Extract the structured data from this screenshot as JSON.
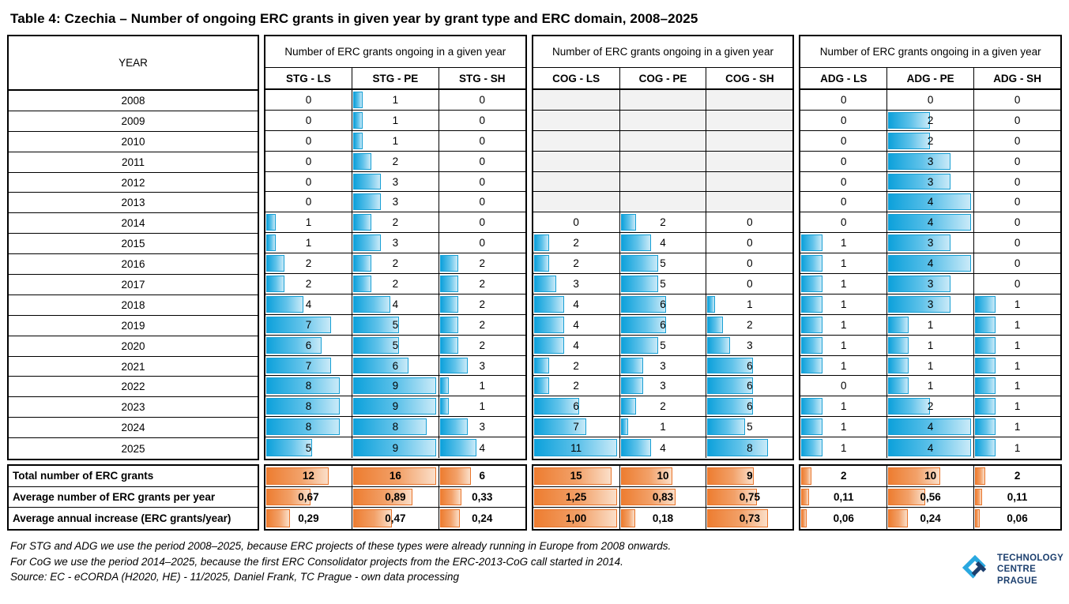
{
  "title": "Table 4: Czechia – Number of ongoing ERC grants in given year by grant type and ERC domain, 2008–2025",
  "chart_data": {
    "type": "table",
    "title": "Table 4: Czechia – Number of ongoing ERC grants in given year by grant type and ERC domain, 2008–2025",
    "year_column_header": "YEAR",
    "group_header": "Number of ERC grants ongoing in a given year",
    "years": [
      2008,
      2009,
      2010,
      2011,
      2012,
      2013,
      2014,
      2015,
      2016,
      2017,
      2018,
      2019,
      2020,
      2021,
      2022,
      2023,
      2024,
      2025
    ],
    "column_groups": [
      {
        "id": "STG",
        "columns": [
          "STG - LS",
          "STG - PE",
          "STG - SH"
        ],
        "bar_scale_max": 9,
        "rows": [
          [
            0,
            1,
            0
          ],
          [
            0,
            1,
            0
          ],
          [
            0,
            1,
            0
          ],
          [
            0,
            2,
            0
          ],
          [
            0,
            3,
            0
          ],
          [
            0,
            3,
            0
          ],
          [
            1,
            2,
            0
          ],
          [
            1,
            3,
            0
          ],
          [
            2,
            2,
            2
          ],
          [
            2,
            2,
            2
          ],
          [
            4,
            4,
            2
          ],
          [
            7,
            5,
            2
          ],
          [
            6,
            5,
            2
          ],
          [
            7,
            6,
            3
          ],
          [
            8,
            9,
            1
          ],
          [
            8,
            9,
            1
          ],
          [
            8,
            8,
            3
          ],
          [
            5,
            9,
            4
          ]
        ]
      },
      {
        "id": "COG",
        "columns": [
          "COG - LS",
          "COG - PE",
          "COG - SH"
        ],
        "bar_scale_max": 11,
        "rows": [
          null,
          null,
          null,
          null,
          null,
          null,
          [
            0,
            2,
            0
          ],
          [
            2,
            4,
            0
          ],
          [
            2,
            5,
            0
          ],
          [
            3,
            5,
            0
          ],
          [
            4,
            6,
            1
          ],
          [
            4,
            6,
            2
          ],
          [
            4,
            5,
            3
          ],
          [
            2,
            3,
            6
          ],
          [
            2,
            3,
            6
          ],
          [
            6,
            2,
            6
          ],
          [
            7,
            1,
            5
          ],
          [
            11,
            4,
            8
          ]
        ]
      },
      {
        "id": "ADG",
        "columns": [
          "ADG - LS",
          "ADG - PE",
          "ADG - SH"
        ],
        "bar_scale_max": 4,
        "rows": [
          [
            0,
            0,
            0
          ],
          [
            0,
            2,
            0
          ],
          [
            0,
            2,
            0
          ],
          [
            0,
            3,
            0
          ],
          [
            0,
            3,
            0
          ],
          [
            0,
            4,
            0
          ],
          [
            0,
            4,
            0
          ],
          [
            1,
            3,
            0
          ],
          [
            1,
            4,
            0
          ],
          [
            1,
            3,
            0
          ],
          [
            1,
            3,
            1
          ],
          [
            1,
            1,
            1
          ],
          [
            1,
            1,
            1
          ],
          [
            1,
            1,
            1
          ],
          [
            0,
            1,
            1
          ],
          [
            1,
            2,
            1
          ],
          [
            1,
            4,
            1
          ],
          [
            1,
            4,
            1
          ]
        ]
      }
    ],
    "summary_rows": [
      {
        "label": "Total number of ERC grants",
        "bar_scale_max": 16,
        "values": [
          [
            12,
            16,
            6
          ],
          [
            15,
            10,
            9
          ],
          [
            2,
            10,
            2
          ]
        ],
        "display": [
          [
            "12",
            "16",
            "6"
          ],
          [
            "15",
            "10",
            "9"
          ],
          [
            "2",
            "10",
            "2"
          ]
        ]
      },
      {
        "label": "Average number of ERC grants per year",
        "bar_scale_max": 1.25,
        "values": [
          [
            0.67,
            0.89,
            0.33
          ],
          [
            1.25,
            0.83,
            0.75
          ],
          [
            0.11,
            0.56,
            0.11
          ]
        ],
        "display": [
          [
            "0,67",
            "0,89",
            "0,33"
          ],
          [
            "1,25",
            "0,83",
            "0,75"
          ],
          [
            "0,11",
            "0,56",
            "0,11"
          ]
        ]
      },
      {
        "label": "Average annual increase (ERC grants/year)",
        "bar_scale_max": 1.0,
        "values": [
          [
            0.29,
            0.47,
            0.24
          ],
          [
            1.0,
            0.18,
            0.73
          ],
          [
            0.06,
            0.24,
            0.06
          ]
        ],
        "display": [
          [
            "0,29",
            "0,47",
            "0,24"
          ],
          [
            "1,00",
            "0,18",
            "0,73"
          ],
          [
            "0,06",
            "0,24",
            "0,06"
          ]
        ]
      }
    ]
  },
  "footnotes": [
    "For STG and ADG we use the period 2008–2025, because ERC projects of these types were already running in Europe from 2008 onwards.",
    "For CoG we use the period 2014–2025, because the first ERC Consolidator projects from the ERC-2013-CoG call started in 2014.",
    "Source: EC - eCORDA (H2020, HE) - 11/2025, Daniel Frank, TC Prague - own data processing"
  ],
  "logo": {
    "line1": "TECHNOLOGY",
    "line2": "CENTRE PRAGUE"
  },
  "colors": {
    "bar_blue": "#0da1db",
    "bar_blue_border": "#179fd4",
    "bar_orange": "#ed7d31",
    "bar_orange_border": "#e8742a",
    "empty_cell_gray": "#f2f2f2",
    "logo_light_blue": "#29a8e0",
    "logo_navy": "#1c3f6e"
  }
}
